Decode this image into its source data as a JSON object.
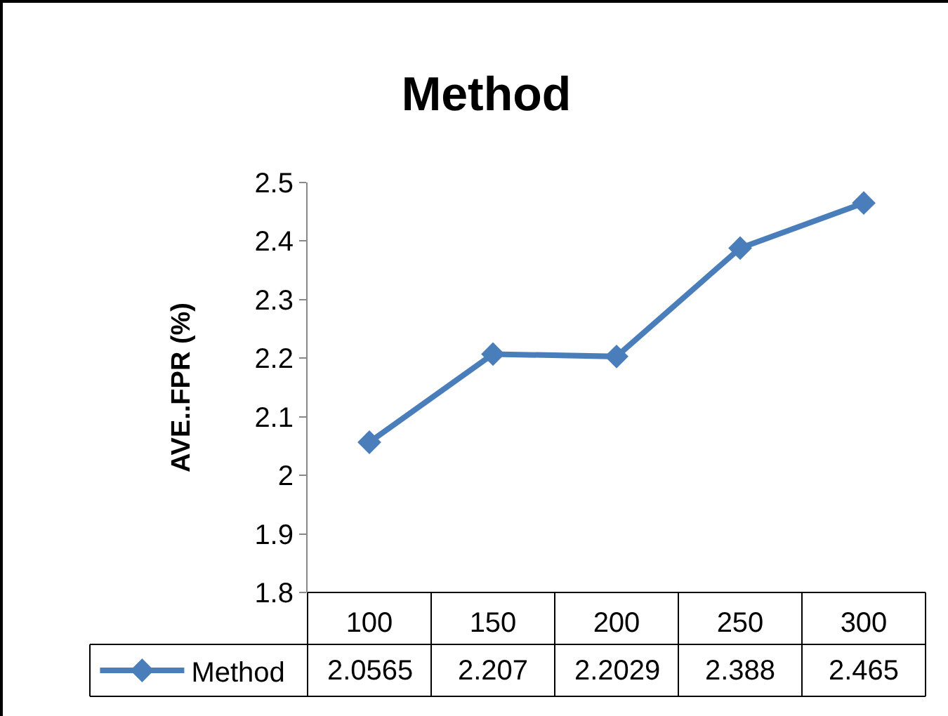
{
  "chart_data": {
    "type": "line",
    "title": "Method",
    "ylabel": "AVE..FPR (%)",
    "categories": [
      "100",
      "150",
      "200",
      "250",
      "300"
    ],
    "series": [
      {
        "name": "Method",
        "color": "#4a7ebb",
        "values": [
          2.0565,
          2.207,
          2.2029,
          2.388,
          2.465
        ]
      }
    ],
    "ylim": [
      1.8,
      2.5
    ],
    "yticks": [
      1.8,
      1.9,
      2,
      2.1,
      2.2,
      2.3,
      2.4,
      2.5
    ],
    "marker": "diamond",
    "legend": "bottom",
    "data_labels": true
  }
}
